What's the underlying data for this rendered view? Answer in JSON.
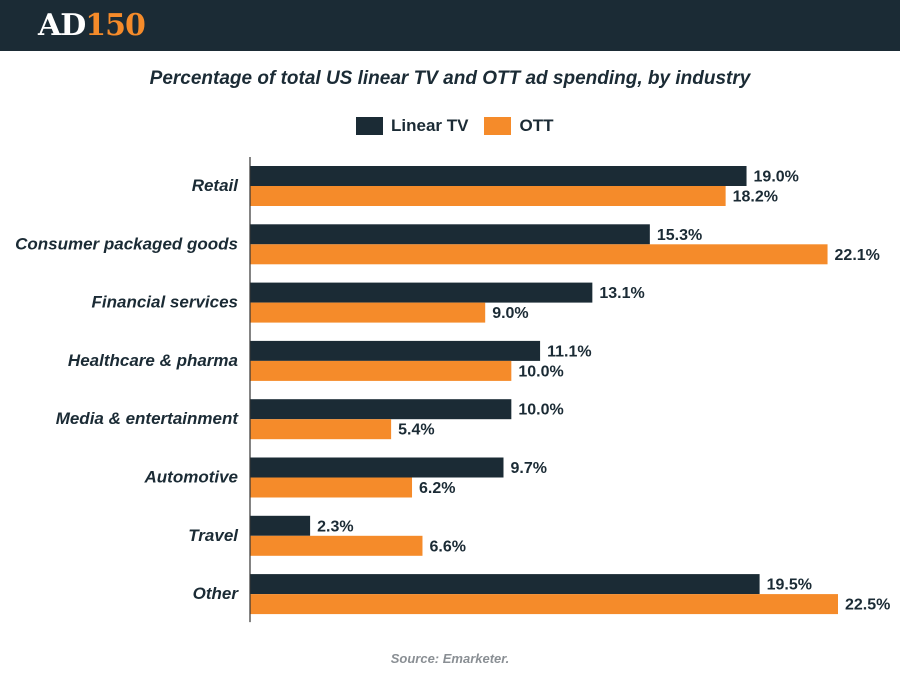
{
  "brand": {
    "logo_main": "AD",
    "logo_number": "150"
  },
  "colors": {
    "linear": "#1b2b35",
    "ott": "#f58b2a",
    "axis": "#333333",
    "text": "#1b2b35"
  },
  "chart_data": {
    "type": "bar",
    "orientation": "horizontal",
    "title": "Percentage of total US linear TV and OTT ad spending, by industry",
    "categories": [
      "Retail",
      "Consumer packaged goods",
      "Financial services",
      "Healthcare & pharma",
      "Media & entertainment",
      "Automotive",
      "Travel",
      "Other"
    ],
    "series": [
      {
        "name": "Linear TV",
        "values": [
          19.0,
          15.3,
          13.1,
          11.1,
          10.0,
          9.7,
          2.3,
          19.5
        ],
        "labels": [
          "19.0%",
          "15.3%",
          "13.1%",
          "11.1%",
          "10.0%",
          "9.7%",
          "2.3%",
          "19.5%"
        ]
      },
      {
        "name": "OTT",
        "values": [
          18.2,
          22.1,
          9.0,
          10.0,
          5.4,
          6.2,
          6.6,
          22.5
        ],
        "labels": [
          "18.2%",
          "22.1%",
          "9.0%",
          "10.0%",
          "5.4%",
          "6.2%",
          "6.6%",
          "22.5%"
        ]
      }
    ],
    "xlim": [
      0,
      22.5
    ],
    "legend": "top-center",
    "grid": false
  },
  "source": "Source: Emarketer."
}
